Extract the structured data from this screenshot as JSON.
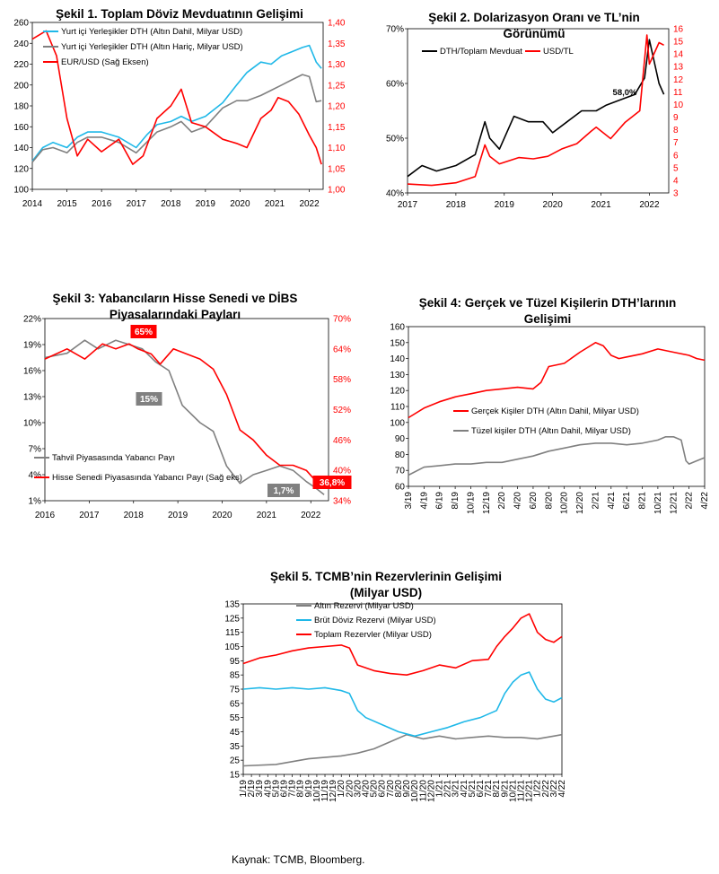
{
  "source": "Kaynak: TCMB, Bloomberg.",
  "chart_data": [
    {
      "id": "c1",
      "type": "line",
      "title": [
        "Şekil 1. Toplam Döviz Mevduatının Gelişimi"
      ],
      "ylim": [
        100,
        260
      ],
      "yticks": [
        "100",
        "120",
        "140",
        "160",
        "180",
        "200",
        "220",
        "240",
        "260"
      ],
      "y2lim": [
        1.0,
        1.4
      ],
      "y2ticks": [
        "1,00",
        "1,05",
        "1,10",
        "1,15",
        "1,20",
        "1,25",
        "1,30",
        "1,35",
        "1,40"
      ],
      "xlim": [
        2014,
        2022.4
      ],
      "xticks": [
        "2014",
        "2015",
        "2016",
        "2017",
        "2018",
        "2019",
        "2020",
        "2021",
        "2022"
      ],
      "series": [
        {
          "name": "Yurt içi Yerleşikler DTH (Altın Dahil, Milyar USD)",
          "color": "#1fb8e8",
          "axis": "left",
          "x": [
            2014,
            2014.3,
            2014.6,
            2015,
            2015.3,
            2015.6,
            2016,
            2016.5,
            2017,
            2017.3,
            2017.6,
            2018,
            2018.3,
            2018.6,
            2019,
            2019.5,
            2019.9,
            2020.2,
            2020.6,
            2020.9,
            2021.2,
            2021.5,
            2021.8,
            2022,
            2022.2,
            2022.35
          ],
          "values": [
            127,
            140,
            145,
            140,
            150,
            155,
            155,
            150,
            140,
            152,
            162,
            165,
            170,
            165,
            170,
            183,
            200,
            212,
            222,
            220,
            228,
            232,
            236,
            238,
            222,
            216
          ]
        },
        {
          "name": "Yurt içi Yerleşikler DTH (Altın Hariç, Milyar USD)",
          "color": "#808080",
          "axis": "left",
          "x": [
            2014,
            2014.3,
            2014.6,
            2015,
            2015.3,
            2015.6,
            2016,
            2016.5,
            2017,
            2017.3,
            2017.6,
            2018,
            2018.3,
            2018.6,
            2019,
            2019.5,
            2019.9,
            2020.2,
            2020.6,
            2020.9,
            2021.2,
            2021.5,
            2021.8,
            2022,
            2022.2,
            2022.35
          ],
          "values": [
            126,
            138,
            140,
            135,
            145,
            150,
            150,
            145,
            135,
            145,
            155,
            160,
            165,
            155,
            160,
            178,
            185,
            185,
            190,
            195,
            200,
            205,
            210,
            208,
            184,
            185
          ]
        },
        {
          "name": "EUR/USD (Sağ Eksen)",
          "color": "#ff0000",
          "axis": "right",
          "x": [
            2014,
            2014.4,
            2014.7,
            2015,
            2015.3,
            2015.6,
            2016,
            2016.5,
            2016.9,
            2017.2,
            2017.6,
            2018,
            2018.3,
            2018.6,
            2019,
            2019.5,
            2019.9,
            2020.2,
            2020.6,
            2020.9,
            2021.1,
            2021.4,
            2021.7,
            2022,
            2022.2,
            2022.35
          ],
          "values": [
            1.36,
            1.38,
            1.32,
            1.17,
            1.08,
            1.12,
            1.09,
            1.12,
            1.06,
            1.08,
            1.17,
            1.2,
            1.24,
            1.16,
            1.15,
            1.12,
            1.11,
            1.1,
            1.17,
            1.19,
            1.22,
            1.21,
            1.18,
            1.13,
            1.1,
            1.06
          ]
        }
      ]
    },
    {
      "id": "c2",
      "type": "line",
      "title": [
        "Şekil 2. Dolarizasyon Oranı ve TL’nin",
        "Görünümü"
      ],
      "ylim": [
        40,
        70
      ],
      "yticks": [
        "40%",
        "50%",
        "60%",
        "70%"
      ],
      "y2lim": [
        3,
        16
      ],
      "y2ticks": [
        "3",
        "4",
        "5",
        "6",
        "7",
        "8",
        "9",
        "10",
        "11",
        "12",
        "13",
        "14",
        "15",
        "16"
      ],
      "xlim": [
        2017,
        2022.4
      ],
      "xticks": [
        "2017",
        "2018",
        "2019",
        "2020",
        "2021",
        "2022"
      ],
      "annotation": "58,0%",
      "series": [
        {
          "name": "DTH/Toplam Mevduat",
          "color": "#000000",
          "axis": "left",
          "x": [
            2017,
            2017.3,
            2017.6,
            2018,
            2018.4,
            2018.6,
            2018.7,
            2018.9,
            2019.2,
            2019.5,
            2019.8,
            2020,
            2020.3,
            2020.6,
            2020.9,
            2021.1,
            2021.4,
            2021.7,
            2021.9,
            2022,
            2022.2,
            2022.3
          ],
          "values": [
            43,
            45,
            44,
            45,
            47,
            53,
            50,
            48,
            54,
            53,
            53,
            51,
            53,
            55,
            55,
            56,
            57,
            58,
            61,
            68,
            60,
            58
          ]
        },
        {
          "name": "USD/TL",
          "color": "#ff0000",
          "axis": "right",
          "x": [
            2017,
            2017.5,
            2018,
            2018.4,
            2018.6,
            2018.7,
            2018.9,
            2019.3,
            2019.6,
            2019.9,
            2020.2,
            2020.5,
            2020.8,
            2020.9,
            2021.2,
            2021.5,
            2021.8,
            2021.95,
            2022,
            2022.2,
            2022.3
          ],
          "values": [
            3.7,
            3.6,
            3.8,
            4.3,
            6.8,
            5.9,
            5.3,
            5.8,
            5.7,
            5.9,
            6.5,
            6.9,
            7.9,
            8.2,
            7.3,
            8.6,
            9.5,
            15.5,
            13.2,
            14.9,
            14.7
          ]
        }
      ]
    },
    {
      "id": "c3",
      "type": "line",
      "title": [
        "Şekil 3: Yabancıların Hisse Senedi ve DİBS",
        "Piyasalarındaki Payları"
      ],
      "ylim": [
        1,
        22
      ],
      "yticks": [
        "1%",
        "4%",
        "7%",
        "10%",
        "13%",
        "16%",
        "19%",
        "22%"
      ],
      "y2lim": [
        34,
        70
      ],
      "y2ticks": [
        "34%",
        "40%",
        "46%",
        "52%",
        "58%",
        "64%",
        "70%"
      ],
      "xlim": [
        2016,
        2022.4
      ],
      "xticks": [
        "2016",
        "2017",
        "2018",
        "2019",
        "2020",
        "2021",
        "2022"
      ],
      "annotations": [
        "65%",
        "15%",
        "1,7%",
        "36,8%"
      ],
      "series": [
        {
          "name": "Tahvil Piyasasında Yabancı Payı",
          "color": "#808080",
          "axis": "left",
          "x": [
            2016,
            2016.5,
            2016.9,
            2017.2,
            2017.6,
            2017.9,
            2018.2,
            2018.5,
            2018.8,
            2019.1,
            2019.5,
            2019.8,
            2020.1,
            2020.4,
            2020.7,
            2021,
            2021.3,
            2021.6,
            2021.9,
            2022.1,
            2022.3
          ],
          "values": [
            17.5,
            18,
            19.5,
            18.5,
            19.5,
            19,
            18.5,
            17,
            16,
            12,
            10,
            9,
            5,
            3,
            4,
            4.5,
            5,
            4.5,
            3.2,
            2.5,
            1.7
          ]
        },
        {
          "name": "Hisse Senedi Piyasasında Yabancı Payı (Sağ eks)",
          "color": "#ff0000",
          "axis": "right",
          "x": [
            2016,
            2016.5,
            2016.9,
            2017.3,
            2017.6,
            2017.9,
            2018.1,
            2018.4,
            2018.6,
            2018.9,
            2019.2,
            2019.5,
            2019.8,
            2020.1,
            2020.4,
            2020.7,
            2021,
            2021.3,
            2021.6,
            2021.9,
            2022.1,
            2022.3
          ],
          "values": [
            62,
            64,
            62,
            65,
            64,
            65,
            64,
            63,
            61,
            64,
            63,
            62,
            60,
            55,
            48,
            46,
            43,
            41,
            41,
            40,
            38,
            36.8
          ]
        }
      ]
    },
    {
      "id": "c4",
      "type": "line",
      "title": [
        "Şekil 4: Gerçek ve Tüzel Kişilerin DTH’larının",
        "Gelişimi"
      ],
      "ylim": [
        60,
        160
      ],
      "yticks": [
        "60",
        "70",
        "80",
        "90",
        "100",
        "110",
        "120",
        "130",
        "140",
        "150",
        "160"
      ],
      "xticks": [
        "3/19",
        "4/19",
        "6/19",
        "8/19",
        "10/19",
        "12/19",
        "2/20",
        "4/20",
        "6/20",
        "8/20",
        "10/20",
        "12/20",
        "2/21",
        "4/21",
        "6/21",
        "8/21",
        "10/21",
        "12/21",
        "2/22",
        "4/22"
      ],
      "xlim": [
        0,
        38
      ],
      "series": [
        {
          "name": "Gerçek Kişiler DTH (Altın Dahil, Milyar USD)",
          "color": "#ff0000",
          "x": [
            0,
            2,
            4,
            6,
            8,
            10,
            12,
            14,
            16,
            17,
            18,
            20,
            22,
            24,
            25,
            26,
            27,
            28,
            30,
            32,
            34,
            36,
            37,
            38
          ],
          "values": [
            103,
            109,
            113,
            116,
            118,
            120,
            121,
            122,
            121,
            125,
            135,
            137,
            144,
            150,
            148,
            142,
            140,
            141,
            143,
            146,
            144,
            142,
            140,
            139
          ]
        },
        {
          "name": "Tüzel kişiler DTH (Altın Dahil, Milyar USD)",
          "color": "#808080",
          "x": [
            0,
            2,
            4,
            6,
            8,
            10,
            12,
            14,
            16,
            18,
            20,
            22,
            24,
            26,
            28,
            30,
            32,
            33,
            34,
            35,
            35.6,
            36,
            37,
            38
          ],
          "values": [
            67,
            72,
            73,
            74,
            74,
            75,
            75,
            77,
            79,
            82,
            84,
            86,
            87,
            87,
            86,
            87,
            89,
            91,
            91,
            89,
            76,
            74,
            76,
            78
          ]
        }
      ]
    },
    {
      "id": "c5",
      "type": "line",
      "title": [
        "Şekil 5. TCMB’nin Rezervlerinin Gelişimi",
        "(Milyar USD)"
      ],
      "ylim": [
        15,
        135
      ],
      "yticks": [
        "15",
        "25",
        "35",
        "45",
        "55",
        "65",
        "75",
        "85",
        "95",
        "105",
        "115",
        "125",
        "135"
      ],
      "xticks": [
        "1/19",
        "2/19",
        "3/19",
        "4/19",
        "5/19",
        "6/19",
        "7/19",
        "8/19",
        "9/19",
        "10/19",
        "11/19",
        "12/19",
        "1/20",
        "2/20",
        "3/20",
        "4/20",
        "5/20",
        "6/20",
        "7/20",
        "8/20",
        "9/20",
        "10/20",
        "11/20",
        "12/20",
        "1/21",
        "2/21",
        "3/21",
        "4/21",
        "5/21",
        "6/21",
        "7/21",
        "8/21",
        "9/21",
        "10/21",
        "11/21",
        "12/21",
        "1/22",
        "2/22",
        "3/22",
        "4/22"
      ],
      "xlim": [
        0,
        39
      ],
      "series": [
        {
          "name": "Altın Rezervi (Milyar USD)",
          "color": "#808080",
          "x": [
            0,
            4,
            8,
            12,
            14,
            16,
            18,
            20,
            22,
            24,
            26,
            28,
            30,
            32,
            34,
            36,
            38,
            39
          ],
          "values": [
            21,
            22,
            26,
            28,
            30,
            33,
            38,
            43,
            40,
            42,
            40,
            41,
            42,
            41,
            41,
            40,
            42,
            43
          ]
        },
        {
          "name": "Brüt Döviz Rezervi (Milyar USD)",
          "color": "#1fb8e8",
          "x": [
            0,
            2,
            4,
            6,
            8,
            10,
            12,
            13,
            14,
            15,
            17,
            19,
            21,
            23,
            25,
            27,
            29,
            31,
            32,
            33,
            34,
            35,
            36,
            37,
            38,
            39
          ],
          "values": [
            75,
            76,
            75,
            76,
            75,
            76,
            74,
            72,
            60,
            55,
            50,
            45,
            42,
            45,
            48,
            52,
            55,
            60,
            72,
            80,
            85,
            87,
            75,
            68,
            66,
            69
          ]
        },
        {
          "name": "Toplam Rezervler (Milyar USD)",
          "color": "#ff0000",
          "x": [
            0,
            2,
            4,
            6,
            8,
            10,
            12,
            13,
            14,
            16,
            18,
            20,
            22,
            24,
            26,
            28,
            30,
            31,
            32,
            33,
            34,
            35,
            36,
            37,
            38,
            39
          ],
          "values": [
            93,
            97,
            99,
            102,
            104,
            105,
            106,
            104,
            92,
            88,
            86,
            85,
            88,
            92,
            90,
            95,
            96,
            105,
            112,
            118,
            125,
            128,
            115,
            110,
            108,
            112
          ]
        }
      ]
    }
  ]
}
